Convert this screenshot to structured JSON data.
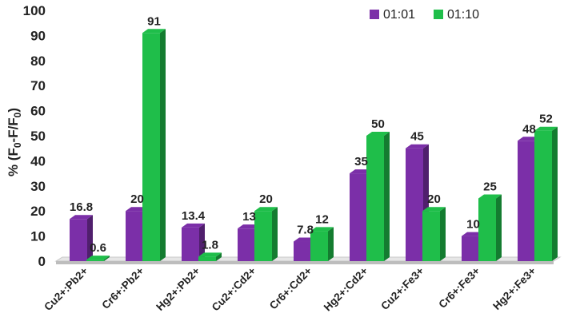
{
  "chart_data": {
    "type": "bar",
    "categories": [
      "Cu2+:Pb2+",
      "Cr6+:Pb2+",
      "Hg2+:Pb2+",
      "Cu2+:Cd2+",
      "Cr6+:Cd2+",
      "Hg2+:Cd2+",
      "Cu2+:Fe3+",
      "Cr6+:Fe3+",
      "Hg2+:Fe3+"
    ],
    "series": [
      {
        "name": "01:01",
        "color": "#7b2fa8",
        "values": [
          16.8,
          20,
          13.4,
          13,
          7.8,
          35,
          45,
          10,
          48
        ],
        "labels": [
          "16.8",
          "20",
          "13.4",
          "13",
          "7.8",
          "35",
          "45",
          "10",
          "48"
        ]
      },
      {
        "name": "01:10",
        "color": "#1fbe4a",
        "values": [
          0.6,
          91,
          1.8,
          20,
          12,
          50,
          20,
          25,
          52
        ],
        "labels": [
          "0.6",
          "91",
          "1.8",
          "20",
          "12",
          "50",
          "20",
          "25",
          "52"
        ]
      }
    ],
    "ylabel_parts": [
      "% (F",
      "0",
      "-F/F",
      "0",
      ")"
    ],
    "ylim": [
      0,
      100
    ],
    "yticks": [
      "0",
      "10",
      "20",
      "30",
      "40",
      "50",
      "60",
      "70",
      "80",
      "90",
      "100"
    ],
    "legend_position": "top-right",
    "grid": false
  }
}
